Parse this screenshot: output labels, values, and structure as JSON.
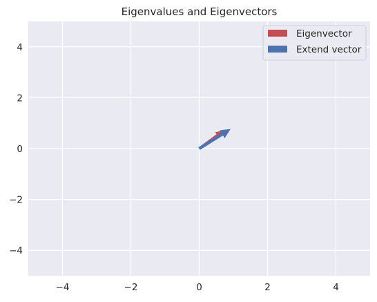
{
  "chart_data": {
    "type": "quiver",
    "title": "Eigenvalues and Eigenvectors",
    "xlabel": "",
    "ylabel": "",
    "xlim": [
      -5,
      5
    ],
    "ylim": [
      -5,
      5
    ],
    "xticks": [
      -4,
      -2,
      0,
      2,
      4
    ],
    "yticks": [
      -4,
      -2,
      0,
      2,
      4
    ],
    "xtick_labels": [
      "−4",
      "−2",
      "0",
      "2",
      "4"
    ],
    "ytick_labels": [
      "−4",
      "−2",
      "0",
      "2",
      "4"
    ],
    "grid": true,
    "legend_position": "top-right",
    "colors": {
      "plot_background": "#eaeaf2",
      "grid": "#ffffff",
      "text": "#262626"
    },
    "series": [
      {
        "name": "Eigenvector",
        "color": "#c44e52",
        "vectors": [
          {
            "x0": 0,
            "y0": 0,
            "dx": 0.71,
            "dy": 0.71
          }
        ]
      },
      {
        "name": "Extend vector",
        "color": "#4c72b0",
        "vectors": [
          {
            "x0": 0,
            "y0": 0,
            "dx": 0.92,
            "dy": 0.77
          }
        ]
      }
    ]
  }
}
